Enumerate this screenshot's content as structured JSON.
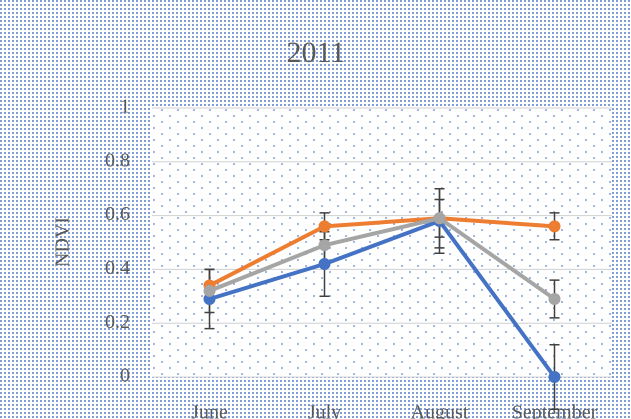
{
  "chart_data": {
    "type": "line",
    "title": "2011",
    "y_label": "NDVI",
    "categories": [
      "June",
      "July",
      "August",
      "September"
    ],
    "series": [
      {
        "color": "#4472c4",
        "values": [
          0.29,
          0.42,
          0.58,
          0
        ],
        "errors": [
          0.11,
          0.12,
          0.12,
          0.12
        ]
      },
      {
        "color": "#ed7d31",
        "values": [
          0.34,
          0.56,
          0.59,
          0.56
        ],
        "errors": [
          0.06,
          0.05,
          0.11,
          0.05
        ]
      },
      {
        "color": "#a5a5a5",
        "values": [
          0.32,
          0.49,
          0.59,
          0.29
        ],
        "errors": [
          0.08,
          0.06,
          0.07,
          0.07
        ]
      }
    ],
    "ylim": [
      0,
      1
    ],
    "yticks": [
      0,
      0.2,
      0.4,
      0.6,
      0.8,
      1
    ],
    "grid": true
  }
}
